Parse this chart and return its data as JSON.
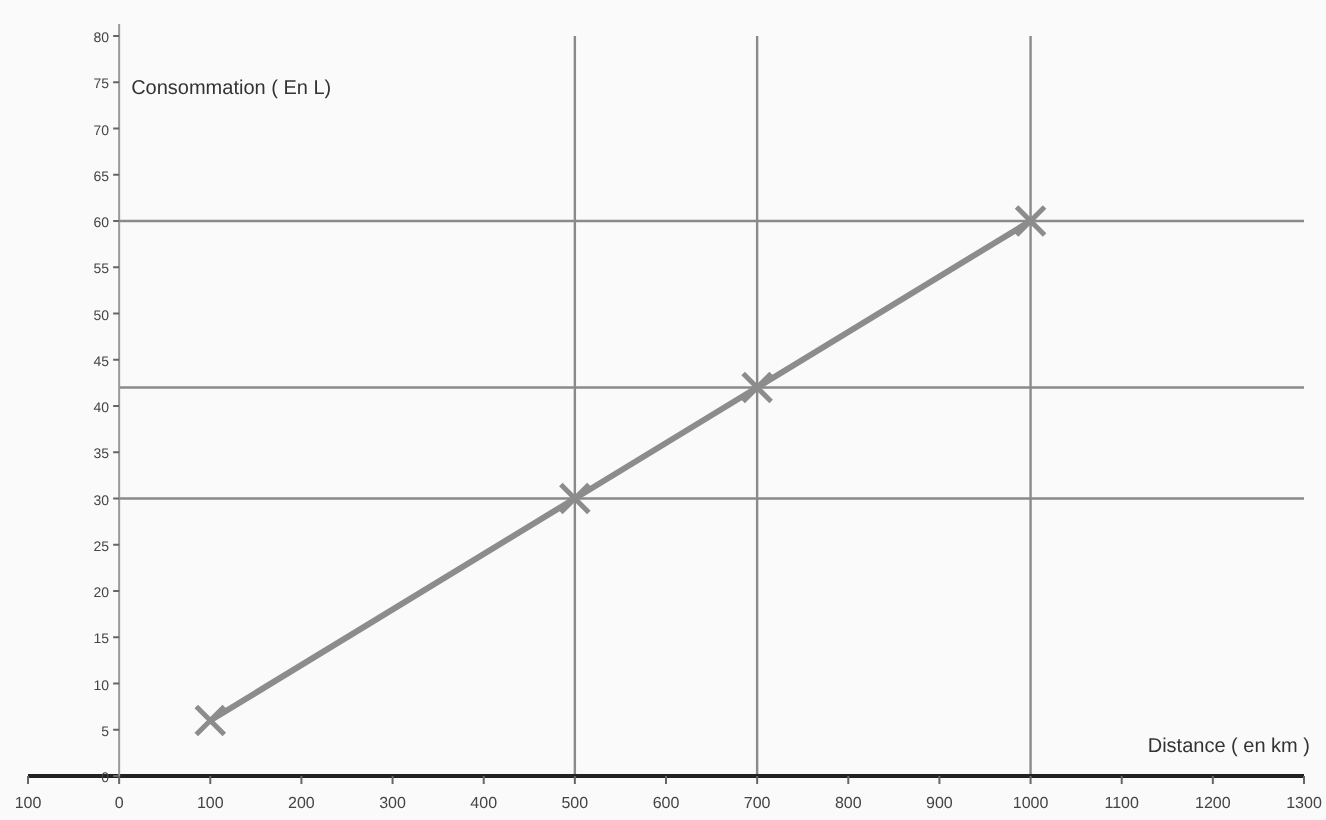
{
  "chart_data": {
    "type": "line",
    "xlabel": "Distance ( en km )",
    "ylabel": "Consommation ( En L)",
    "x": [
      100,
      500,
      700,
      1000
    ],
    "series": [
      {
        "color": "#8c8c8c",
        "values": [
          6,
          30,
          42,
          60
        ]
      }
    ],
    "marker": "cross",
    "line_style": "solid",
    "xlim": [
      -100,
      1300
    ],
    "xticks": [
      {
        "value": -100,
        "label": "100"
      },
      0,
      100,
      200,
      300,
      400,
      500,
      600,
      700,
      800,
      900,
      1000,
      1100,
      1200,
      1300
    ],
    "ylim": [
      0,
      80
    ],
    "yticks": [
      0,
      5,
      10,
      15,
      20,
      25,
      30,
      35,
      40,
      45,
      50,
      55,
      60,
      65,
      70,
      75,
      80
    ],
    "ref_lines": [
      {
        "axis": "x",
        "value": 500
      },
      {
        "axis": "x",
        "value": 700
      },
      {
        "axis": "x",
        "value": 1000
      },
      {
        "axis": "y",
        "value": 30
      },
      {
        "axis": "y",
        "value": 42
      },
      {
        "axis": "y",
        "value": 60
      }
    ],
    "grid": false
  }
}
